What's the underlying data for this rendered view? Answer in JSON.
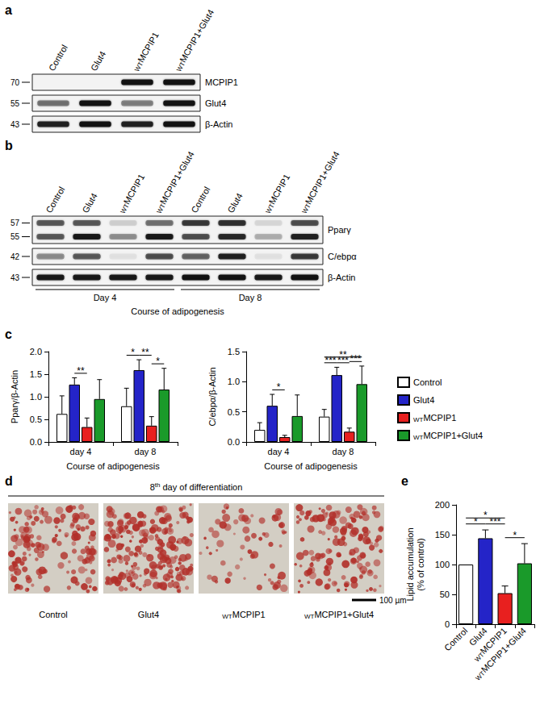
{
  "subscript_text": "WT",
  "panel_labels": [
    "a",
    "b",
    "c",
    "d",
    "e"
  ],
  "blot_a": {
    "lanes": [
      "Control",
      "Glut4",
      "WTMCPIP1",
      "WTMCPIP1+Glut4"
    ],
    "rows": [
      {
        "name": "MCPIP1",
        "markers": [
          70
        ],
        "bands": [
          [
            0,
            0,
            0.95,
            0.95
          ]
        ]
      },
      {
        "name": "Glut4",
        "markers": [
          55
        ],
        "bands": [
          [
            0.45,
            0.95,
            0.4,
            0.95
          ]
        ]
      },
      {
        "name": "β-Actin",
        "markers": [
          43
        ],
        "bands": [
          [
            0.85,
            0.95,
            0.85,
            0.95
          ]
        ]
      }
    ]
  },
  "blot_b": {
    "lanes": [
      "Control",
      "Glut4",
      "WTMCPIP1",
      "WTMCPIP1+Glut4",
      "Control",
      "Glut4",
      "WTMCPIP1",
      "WTMCPIP1+Glut4"
    ],
    "groups": [
      "Day 4",
      "Day 8"
    ],
    "group_title": "Course of adipogenesis",
    "rows": [
      {
        "name": "Pparγ",
        "markers": [
          57,
          55
        ],
        "bands": [
          [
            0.55,
            0.55,
            0.1,
            0.45,
            0.7,
            0.75,
            0.08,
            0.6
          ],
          [
            0.55,
            0.9,
            0.3,
            0.9,
            0.6,
            0.8,
            0.2,
            0.85
          ]
        ]
      },
      {
        "name": "C/ebpα",
        "markers": [
          42
        ],
        "bands": [
          [
            0.35,
            0.55,
            0.05,
            0.6,
            0.5,
            0.85,
            0.05,
            0.7
          ]
        ]
      },
      {
        "name": "β-Actin",
        "markers": [
          43
        ],
        "bands": [
          [
            0.9,
            0.9,
            0.9,
            0.9,
            0.95,
            0.95,
            0.9,
            0.95
          ]
        ]
      }
    ]
  },
  "images_d": {
    "title": "8",
    "title_sup": "th",
    "title_rest": " day of differentiation",
    "labels": [
      "Control",
      "Glut4",
      "WTMCPIP1",
      "WTMCPIP1+Glut4"
    ],
    "stain_density": [
      0.55,
      0.8,
      0.25,
      0.55
    ],
    "scale_bar": "100 µm"
  },
  "chart_data": [
    {
      "type": "bar",
      "y_label": "Pparγ/β-Actin",
      "x_label": "Course of adipogenesis",
      "categories": [
        "day 4",
        "day 8"
      ],
      "series": [
        {
          "name": "Control",
          "color": "#ffffff",
          "values": [
            0.62,
            0.79
          ],
          "errors": [
            0.4,
            0.4
          ]
        },
        {
          "name": "Glut4",
          "color": "#2424c8",
          "values": [
            1.27,
            1.59
          ],
          "errors": [
            0.15,
            0.23
          ]
        },
        {
          "name": "WTMCPIP1",
          "color": "#e8201f",
          "values": [
            0.33,
            0.36
          ],
          "errors": [
            0.2,
            0.2
          ]
        },
        {
          "name": "WTMCPIP1+Glut4",
          "color": "#1a9a2a",
          "values": [
            0.95,
            1.16
          ],
          "errors": [
            0.43,
            0.47
          ]
        }
      ],
      "ylim": [
        0,
        2
      ],
      "yticks": [
        {
          "value": 0,
          "label": "0.0"
        },
        {
          "value": 0.5,
          "label": "0.5"
        },
        {
          "value": 1,
          "label": "1.0"
        },
        {
          "value": 1.5,
          "label": "1.5"
        },
        {
          "value": 2,
          "label": "2.0"
        }
      ],
      "grid": false,
      "significance": [
        {
          "category": "day 4",
          "from": "Glut4",
          "to": "WTMCPIP1",
          "label": "**"
        },
        {
          "category": "day 8",
          "from": "Control",
          "to": "Glut4",
          "label": "*"
        },
        {
          "category": "day 8",
          "from": "Glut4",
          "to": "WTMCPIP1",
          "label": "**"
        },
        {
          "category": "day 8",
          "from": "WTMCPIP1",
          "to": "WTMCPIP1+Glut4",
          "label": "*"
        }
      ]
    },
    {
      "type": "bar",
      "y_label": "C/ebpα/β-Actin",
      "x_label": "Course of adipogenesis",
      "categories": [
        "day 4",
        "day 8"
      ],
      "series": [
        {
          "name": "Control",
          "color": "#ffffff",
          "values": [
            0.2,
            0.42
          ],
          "errors": [
            0.12,
            0.12
          ]
        },
        {
          "name": "Glut4",
          "color": "#2424c8",
          "values": [
            0.6,
            1.11
          ],
          "errors": [
            0.19,
            0.13
          ]
        },
        {
          "name": "WTMCPIP1",
          "color": "#e8201f",
          "values": [
            0.08,
            0.17
          ],
          "errors": [
            0.03,
            0.06
          ]
        },
        {
          "name": "WTMCPIP1+Glut4",
          "color": "#1a9a2a",
          "values": [
            0.43,
            0.96
          ],
          "errors": [
            0.35,
            0.3
          ]
        }
      ],
      "ylim": [
        0,
        1.5
      ],
      "yticks": [
        {
          "value": 0,
          "label": "0.0"
        },
        {
          "value": 0.5,
          "label": "0.5"
        },
        {
          "value": 1,
          "label": "1.0"
        },
        {
          "value": 1.5,
          "label": "1.5"
        }
      ],
      "grid": false,
      "legend": "right",
      "significance": [
        {
          "category": "day 4",
          "from": "Glut4",
          "to": "WTMCPIP1",
          "label": "*"
        },
        {
          "category": "day 8",
          "from": "Control",
          "to": "Glut4",
          "label": "***"
        },
        {
          "category": "day 8",
          "from": "Glut4",
          "to": "WTMCPIP1",
          "label": "***"
        },
        {
          "category": "day 8",
          "from": "WTMCPIP1",
          "to": "WTMCPIP1+Glut4",
          "label": "***"
        },
        {
          "category": "day 8",
          "from": "Control",
          "to": "WTMCPIP1+Glut4",
          "label": "**"
        }
      ]
    },
    {
      "type": "bar",
      "y_label": "Lipid accumulation\n(% of control)",
      "categories": [
        "Control",
        "Glut4",
        "WTMCPIP1",
        "WTMCPIP1+Glut4"
      ],
      "values": [
        100,
        144,
        52,
        102
      ],
      "errors": [
        null,
        14,
        12,
        33
      ],
      "colors": [
        "#ffffff",
        "#2424c8",
        "#e8201f",
        "#1a9a2a"
      ],
      "ylim": [
        0,
        200
      ],
      "yticks": [
        0,
        50,
        100,
        150,
        200
      ],
      "grid": false,
      "significance": [
        {
          "from": "Control",
          "to": "Glut4",
          "label": "*"
        },
        {
          "from": "Control",
          "to": "WTMCPIP1",
          "label": "*"
        },
        {
          "from": "Glut4",
          "to": "WTMCPIP1",
          "label": "***"
        },
        {
          "from": "WTMCPIP1",
          "to": "WTMCPIP1+Glut4",
          "label": "*"
        }
      ]
    }
  ]
}
